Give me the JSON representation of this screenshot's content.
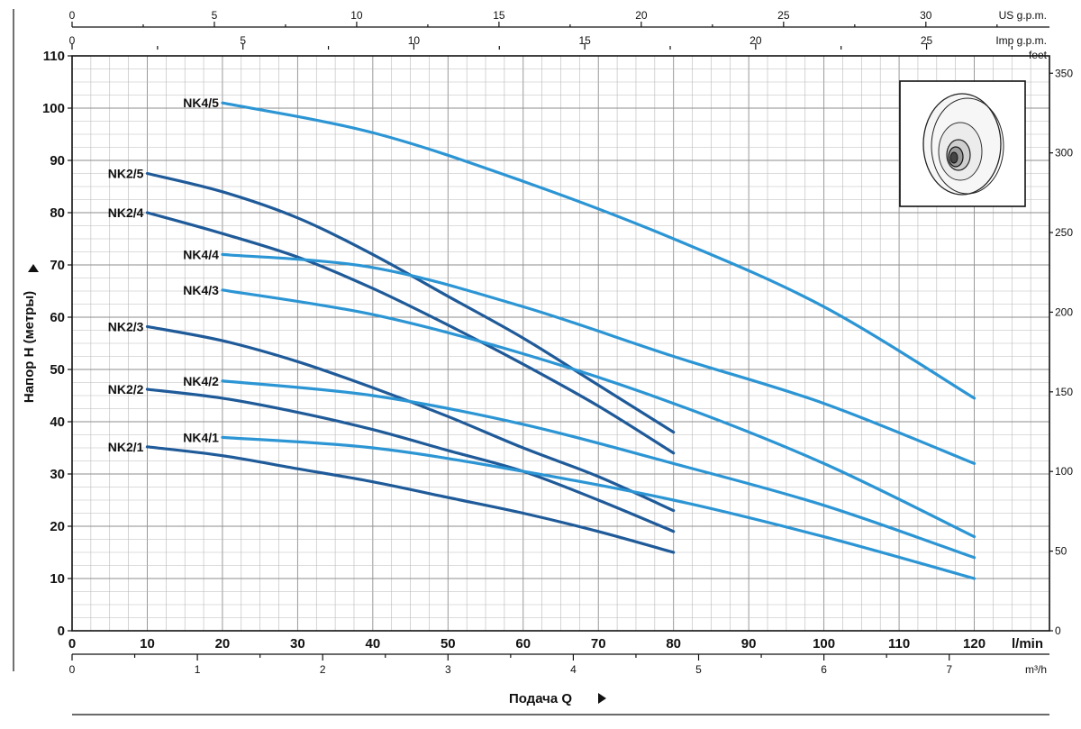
{
  "chart_data": {
    "type": "line",
    "title": "",
    "xlabel": "Подача Q",
    "ylabel": "Напор H (метры)",
    "xlim": [
      0,
      130
    ],
    "ylim": [
      0,
      110
    ],
    "grid": true,
    "x_unit": "l/min",
    "y_right_unit": "feet",
    "x_ticks": [
      0,
      10,
      20,
      30,
      40,
      50,
      60,
      70,
      80,
      90,
      100,
      110,
      120
    ],
    "y_ticks": [
      0,
      10,
      20,
      30,
      40,
      50,
      60,
      70,
      80,
      90,
      100,
      110
    ],
    "feet_ticks": [
      0,
      50,
      100,
      150,
      200,
      250,
      300,
      350
    ],
    "m3h_unit": "m³/h",
    "m3h_ticks": [
      0,
      1,
      2,
      3,
      4,
      5,
      6,
      7
    ],
    "usgpm_unit": "US g.p.m.",
    "usgpm_ticks": [
      0,
      5,
      10,
      15,
      20,
      25,
      30
    ],
    "impgpm_unit": "Imp g.p.m.",
    "impgpm_ticks": [
      0,
      5,
      10,
      15,
      20,
      25
    ],
    "colors": {
      "nk2": "#1f5a99",
      "nk4": "#2c95d4"
    },
    "series": [
      {
        "name": "NK4/5",
        "group": "nk4",
        "x": [
          20,
          40,
          60,
          80,
          100,
          120
        ],
        "y": [
          101,
          95.3,
          86,
          75,
          62,
          44.5
        ]
      },
      {
        "name": "NK2/5",
        "group": "nk2",
        "x": [
          10,
          20,
          30,
          40,
          50,
          60,
          70,
          80
        ],
        "y": [
          87.5,
          84,
          79,
          72,
          64,
          56,
          47,
          38
        ]
      },
      {
        "name": "NK2/4",
        "group": "nk2",
        "x": [
          10,
          20,
          30,
          40,
          50,
          60,
          70,
          80
        ],
        "y": [
          80,
          76,
          71.5,
          65.5,
          58.5,
          51,
          43,
          34
        ]
      },
      {
        "name": "NK4/4",
        "group": "nk4",
        "x": [
          20,
          40,
          60,
          80,
          100,
          120
        ],
        "y": [
          72,
          69.5,
          62,
          52.5,
          43.5,
          32
        ]
      },
      {
        "name": "NK4/3",
        "group": "nk4",
        "x": [
          20,
          40,
          60,
          80,
          100,
          120
        ],
        "y": [
          65.2,
          60.5,
          53,
          43.5,
          32,
          18
        ]
      },
      {
        "name": "NK2/3",
        "group": "nk2",
        "x": [
          10,
          20,
          30,
          40,
          50,
          60,
          70,
          80
        ],
        "y": [
          58.2,
          55.5,
          51.5,
          46.5,
          41,
          35,
          29.5,
          23
        ]
      },
      {
        "name": "NK4/2",
        "group": "nk4",
        "x": [
          20,
          40,
          60,
          80,
          100,
          120
        ],
        "y": [
          47.8,
          45,
          39.5,
          32,
          24,
          14
        ]
      },
      {
        "name": "NK2/2",
        "group": "nk2",
        "x": [
          10,
          20,
          30,
          40,
          50,
          60,
          70,
          80
        ],
        "y": [
          46.2,
          44.5,
          41.8,
          38.5,
          34.5,
          30.5,
          25,
          19
        ]
      },
      {
        "name": "NK4/1",
        "group": "nk4",
        "x": [
          20,
          40,
          60,
          80,
          100,
          120
        ],
        "y": [
          37,
          35,
          30.5,
          25,
          18,
          10
        ]
      },
      {
        "name": "NK2/1",
        "group": "nk2",
        "x": [
          10,
          20,
          30,
          40,
          50,
          60,
          70,
          80
        ],
        "y": [
          35.2,
          33.5,
          31,
          28.5,
          25.5,
          22.5,
          19,
          15
        ]
      }
    ]
  }
}
